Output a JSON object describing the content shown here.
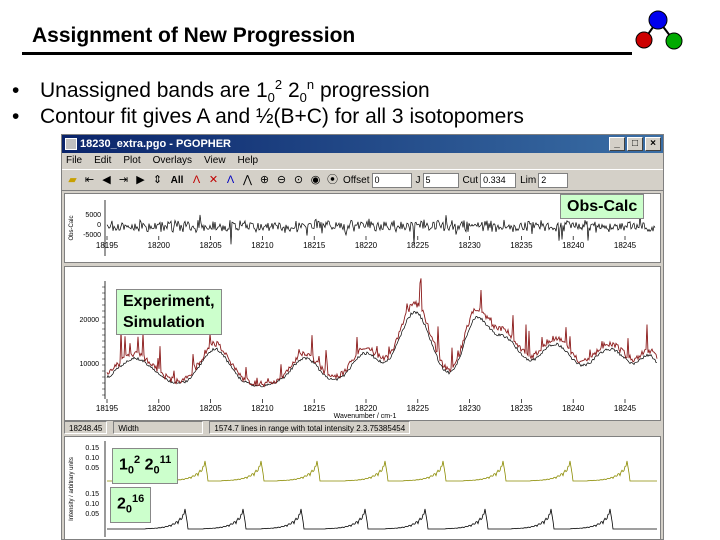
{
  "slide": {
    "title": "Assignment of New Progression",
    "bullets": [
      {
        "pre": "Unassigned bands are 1",
        "sub1": "0",
        "sup1": "2",
        "mid": " 2",
        "sub2": "0",
        "sup2": "n",
        "post": " progression"
      },
      {
        "text": "Contour fit gives A and ½(B+C) for all 3 isotopomers"
      }
    ]
  },
  "window": {
    "title": "18230_extra.pgo - PGOPHER",
    "menu": [
      "File",
      "Edit",
      "Plot",
      "Overlays",
      "View",
      "Help"
    ],
    "toolbar": {
      "all_label": "All",
      "offset_label": "Offset",
      "offset_value": "0",
      "jmax_label": "J",
      "jmax_value": "5",
      "cutoff_label": "Cut",
      "cutoff_value": "0.334",
      "lim_label": "Lim",
      "lim_value": "2"
    },
    "top_pane": {
      "y_label": "Obs-Calc",
      "y_ticks": [
        "5000",
        "0",
        "-5000"
      ],
      "x_ticks": [
        "18195",
        "18200",
        "18205",
        "18210",
        "18215",
        "18220",
        "18225",
        "18230",
        "18235",
        "18240",
        "18245"
      ]
    },
    "mid_pane": {
      "y_ticks": [
        "20000",
        "10000"
      ],
      "x_ticks": [
        "18195",
        "18200",
        "18205",
        "18210",
        "18215",
        "18220",
        "18225",
        "18230",
        "18235",
        "18240",
        "18245"
      ],
      "x_label": "Wavenumber / cm-1"
    },
    "status": {
      "pos": "18248.45",
      "width_label": "Width",
      "message": "1574.7 lines in range with total intensity 2.3.75385454"
    },
    "bottom_pane": {
      "y_ticks_upper": [
        "0.15",
        "0.10",
        "0.05"
      ],
      "y_ticks_lower": [
        "0.15",
        "0.10",
        "0.05"
      ],
      "y_label": "Intensity / arbitrary units"
    }
  },
  "labels": {
    "obs_calc": "Obs-Calc",
    "exp_sim_line1": "Experiment,",
    "exp_sim_line2": "Simulation",
    "prog1": {
      "a": "1",
      "a_sub": "0",
      "a_sup": "2",
      "b": " 2",
      "b_sub": "0",
      "b_sup": "11"
    },
    "prog2": {
      "a": "2",
      "a_sub": "0",
      "a_sup": "16"
    }
  },
  "colors": {
    "experiment": "#8b1a1a",
    "simulation": "#000000",
    "prog1_trace": "#8b8b00",
    "prog2_trace": "#000000",
    "label_bg": "#ccffcc",
    "logo_red": "#cc0000",
    "logo_blue": "#0000ee",
    "logo_green": "#00aa00"
  }
}
